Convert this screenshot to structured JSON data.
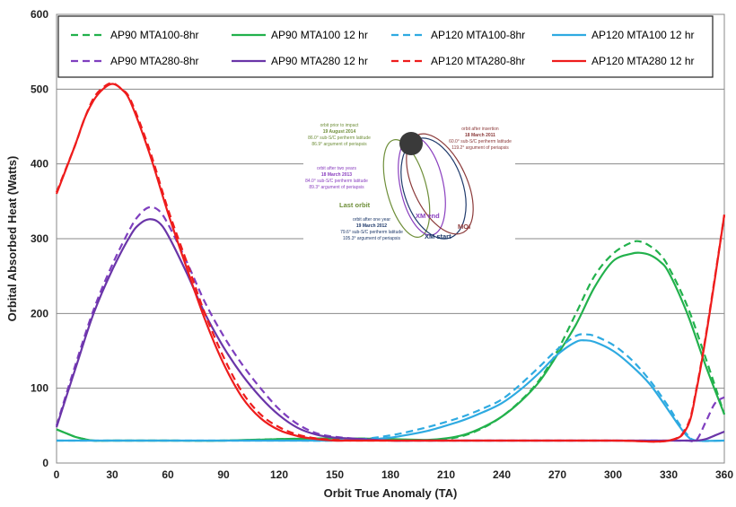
{
  "chart_data": {
    "type": "line",
    "title": "",
    "xlabel": "Orbit True Anomaly (TA)",
    "ylabel": "Orbital Absorbed Heat (Watts)",
    "xlim": [
      0,
      360
    ],
    "ylim": [
      0,
      600
    ],
    "xticks": [
      0,
      30,
      60,
      90,
      120,
      150,
      180,
      210,
      240,
      270,
      300,
      330,
      360
    ],
    "yticks": [
      0,
      100,
      200,
      300,
      400,
      500,
      600
    ],
    "grid": "horizontal",
    "legend_position": "top",
    "series": [
      {
        "name": "AP90 MTA100-8hr",
        "color": "#22b14c",
        "dash": true,
        "x": [
          0,
          5,
          10,
          15,
          20,
          30,
          45,
          60,
          90,
          120,
          150,
          180,
          200,
          210,
          220,
          230,
          240,
          250,
          260,
          270,
          280,
          290,
          300,
          310,
          315,
          320,
          325,
          330,
          340,
          350,
          360
        ],
        "y": [
          45,
          40,
          35,
          32,
          30,
          30,
          30,
          30,
          30,
          32,
          33,
          32,
          30,
          32,
          37,
          47,
          62,
          83,
          110,
          150,
          200,
          250,
          280,
          295,
          296,
          290,
          280,
          262,
          210,
          140,
          65
        ]
      },
      {
        "name": "AP90 MTA100 12 hr",
        "color": "#22b14c",
        "dash": false,
        "x": [
          0,
          5,
          10,
          15,
          20,
          30,
          45,
          60,
          90,
          120,
          150,
          180,
          200,
          210,
          220,
          230,
          240,
          250,
          260,
          270,
          280,
          290,
          300,
          310,
          315,
          320,
          325,
          330,
          340,
          350,
          360
        ],
        "y": [
          45,
          40,
          35,
          32,
          30,
          30,
          30,
          30,
          30,
          32,
          33,
          32,
          31,
          33,
          38,
          48,
          62,
          82,
          108,
          145,
          185,
          235,
          270,
          280,
          281,
          278,
          270,
          255,
          200,
          130,
          65
        ]
      },
      {
        "name": "AP120 MTA100-8hr",
        "color": "#2eaae1",
        "dash": true,
        "x": [
          0,
          30,
          60,
          90,
          120,
          150,
          165,
          180,
          190,
          200,
          210,
          220,
          230,
          240,
          250,
          260,
          270,
          280,
          285,
          290,
          300,
          310,
          320,
          330,
          335,
          340,
          345,
          360
        ],
        "y": [
          30,
          30,
          30,
          30,
          30,
          30,
          32,
          37,
          42,
          48,
          55,
          63,
          73,
          85,
          105,
          128,
          152,
          170,
          172,
          170,
          158,
          138,
          110,
          75,
          55,
          38,
          30,
          30
        ]
      },
      {
        "name": "AP120 MTA100 12 hr",
        "color": "#2eaae1",
        "dash": false,
        "x": [
          0,
          30,
          60,
          90,
          120,
          150,
          165,
          180,
          190,
          200,
          210,
          220,
          230,
          240,
          250,
          260,
          270,
          280,
          285,
          290,
          300,
          310,
          320,
          330,
          335,
          340,
          345,
          360
        ],
        "y": [
          30,
          30,
          30,
          30,
          30,
          30,
          31,
          34,
          38,
          43,
          50,
          58,
          68,
          80,
          98,
          120,
          145,
          162,
          164,
          162,
          150,
          130,
          105,
          70,
          52,
          36,
          30,
          30
        ]
      },
      {
        "name": "AP90 MTA280-8hr",
        "color": "#7f3fbf",
        "dash": true,
        "x": [
          0,
          10,
          20,
          30,
          40,
          45,
          50,
          55,
          60,
          70,
          80,
          90,
          100,
          110,
          120,
          130,
          140,
          150,
          165,
          180,
          200,
          240,
          300,
          330,
          340,
          345,
          350,
          355,
          360
        ],
        "y": [
          50,
          130,
          205,
          265,
          315,
          333,
          342,
          338,
          320,
          270,
          215,
          170,
          132,
          100,
          72,
          52,
          40,
          35,
          32,
          30,
          30,
          30,
          30,
          30,
          30,
          31,
          55,
          80,
          88
        ]
      },
      {
        "name": "AP90 MTA280 12 hr",
        "color": "#6a35a8",
        "dash": false,
        "x": [
          0,
          10,
          20,
          30,
          40,
          45,
          50,
          55,
          60,
          70,
          80,
          90,
          100,
          110,
          120,
          130,
          140,
          150,
          165,
          180,
          200,
          240,
          300,
          330,
          340,
          345,
          350,
          355,
          360
        ],
        "y": [
          48,
          125,
          200,
          258,
          305,
          320,
          326,
          322,
          305,
          255,
          200,
          155,
          118,
          88,
          64,
          47,
          38,
          34,
          32,
          30,
          30,
          30,
          30,
          30,
          30,
          30,
          32,
          37,
          42
        ]
      },
      {
        "name": "AP120 MTA280-8hr",
        "color": "#ee1c1c",
        "dash": true,
        "x": [
          0,
          10,
          15,
          20,
          25,
          30,
          35,
          40,
          50,
          60,
          70,
          80,
          90,
          100,
          110,
          120,
          130,
          140,
          150,
          160,
          180,
          240,
          300,
          330,
          340,
          345,
          350,
          355,
          360
        ],
        "y": [
          362,
          425,
          460,
          488,
          502,
          508,
          500,
          485,
          420,
          340,
          270,
          200,
          142,
          95,
          65,
          48,
          38,
          33,
          31,
          30,
          30,
          30,
          30,
          30,
          50,
          100,
          170,
          250,
          332
        ]
      },
      {
        "name": "AP120 MTA280 12 hr",
        "color": "#ee1c1c",
        "dash": false,
        "x": [
          0,
          10,
          15,
          20,
          25,
          30,
          35,
          40,
          50,
          60,
          70,
          80,
          90,
          100,
          110,
          120,
          130,
          140,
          150,
          160,
          180,
          240,
          300,
          330,
          340,
          345,
          350,
          355,
          360
        ],
        "y": [
          360,
          425,
          460,
          485,
          500,
          507,
          500,
          482,
          415,
          335,
          262,
          192,
          133,
          88,
          60,
          44,
          36,
          32,
          30,
          30,
          30,
          30,
          30,
          30,
          48,
          98,
          168,
          248,
          332
        ]
      }
    ],
    "inset": {
      "labels": {
        "last_orbit": "Last orbit",
        "xm_end": "XM end",
        "moi": "MOI",
        "xm_start": "XM start"
      },
      "notes": {
        "prior": [
          "orbit prior to impact",
          "19 August 2014",
          "86.0° sub-S/C periherm latitude",
          "86.9° argument of periapsis"
        ],
        "insertion": [
          "orbit after insertion",
          "18 March 2011",
          "60.0° sub-S/C periherm latitude",
          "119.2° argument of periapsis"
        ],
        "two_years": [
          "orbit after two years",
          "18 March 2013",
          "84.0° sub-S/C periherm latitude",
          "89.3° argument of periapsis"
        ],
        "one_year": [
          "orbit after one year",
          "19 March 2012",
          "79.6° sub-S/C periherm latitude",
          "105.3° argument of periapsis"
        ]
      },
      "colors": {
        "last_orbit": "#6f8f3a",
        "xm_end": "#8a3fbf",
        "moi": "#8b3a3a",
        "xm_start": "#1f3a6b"
      }
    }
  }
}
